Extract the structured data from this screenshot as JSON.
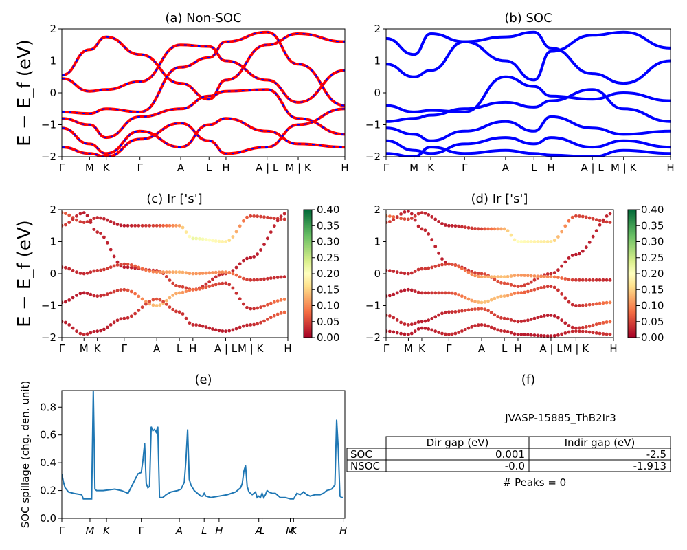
{
  "band_ylabel": "E − E_f (eV)",
  "kpath_labels": [
    "Γ",
    "M",
    "K",
    "Γ",
    "A",
    "L",
    "H",
    "A | L",
    "M | K",
    "H"
  ],
  "colors": {
    "nonsoc_line": "#ff0000",
    "nonsoc_dash": "#0000ff",
    "soc_line": "#0000ff",
    "spillage": "#1f77b4"
  },
  "chart_data": [
    {
      "panel": "a",
      "type": "line",
      "title": "(a) Non-SOC",
      "ylabel": "E − E_f (eV)",
      "ylim": [
        -2,
        2
      ],
      "yticks": [
        -2,
        -1,
        0,
        1,
        2
      ],
      "xticklabels": [
        "Γ",
        "M",
        "K",
        "Γ",
        "A",
        "L",
        "H",
        "A | L",
        "M | K",
        "H"
      ],
      "series": [
        {
          "values": [
            0.55,
            1.35,
            1.75,
            1.2,
            0.3,
            -0.2,
            0.4,
            1.5,
            1.85,
            1.6
          ]
        },
        {
          "values": [
            0.45,
            0.05,
            0.1,
            0.35,
            1.5,
            1.45,
            1.0,
            0.4,
            -0.3,
            0.7
          ]
        },
        {
          "values": [
            -0.6,
            -0.65,
            -0.5,
            -0.6,
            0.8,
            1.1,
            1.6,
            1.9,
            0.9,
            -0.4
          ]
        },
        {
          "values": [
            -0.8,
            -1.0,
            -1.4,
            -0.75,
            -0.5,
            -0.1,
            0.05,
            0.1,
            -0.8,
            -1.3
          ]
        },
        {
          "values": [
            -1.1,
            -1.6,
            -1.9,
            -1.2,
            -1.7,
            -1.0,
            -0.8,
            -1.2,
            -1.6,
            -1.7
          ]
        },
        {
          "values": [
            -1.7,
            -1.9,
            -2.0,
            -1.45,
            -0.95,
            -1.5,
            -1.9,
            -1.7,
            -1.0,
            -0.5
          ]
        }
      ]
    },
    {
      "panel": "b",
      "type": "line",
      "title": "(b) SOC",
      "ylim": [
        -2,
        2
      ],
      "yticks": [
        -2,
        -1,
        0,
        1,
        2
      ],
      "xticklabels": [
        "Γ",
        "M",
        "K",
        "Γ",
        "A",
        "L",
        "H",
        "A | L",
        "M | K",
        "H"
      ],
      "series": [
        {
          "values": [
            1.7,
            1.2,
            1.85,
            1.6,
            1.0,
            0.4,
            1.3,
            1.8,
            1.9,
            1.4
          ]
        },
        {
          "values": [
            0.9,
            0.5,
            0.7,
            1.6,
            1.75,
            1.9,
            1.4,
            0.6,
            0.3,
            1.0
          ]
        },
        {
          "values": [
            -0.4,
            -0.6,
            -0.55,
            -0.6,
            0.5,
            0.2,
            -0.1,
            -0.2,
            0.0,
            -0.25
          ]
        },
        {
          "values": [
            -0.9,
            -0.8,
            -0.7,
            -0.5,
            -0.3,
            -0.45,
            -0.25,
            0.1,
            -0.5,
            -0.9
          ]
        },
        {
          "values": [
            -1.1,
            -1.3,
            -1.5,
            -1.2,
            -0.9,
            -1.2,
            -0.75,
            -1.1,
            -1.3,
            -1.2
          ]
        },
        {
          "values": [
            -1.5,
            -1.8,
            -1.9,
            -1.6,
            -1.4,
            -1.6,
            -1.4,
            -1.7,
            -1.5,
            -1.7
          ]
        },
        {
          "values": [
            -1.9,
            -2.0,
            -1.7,
            -1.9,
            -1.8,
            -1.9,
            -1.95,
            -2.0,
            -1.8,
            -1.9
          ]
        }
      ]
    },
    {
      "panel": "c",
      "type": "scatter",
      "title": "(c)  Ir ['s']",
      "ylim": [
        -2,
        2
      ],
      "yticks": [
        -2,
        -1,
        0,
        1,
        2
      ],
      "xticklabels": [
        "Γ",
        "M",
        "K",
        "Γ",
        "A",
        "L",
        "H",
        "A | L",
        "M | K",
        "H"
      ],
      "colorbar": {
        "min": 0.0,
        "max": 0.4,
        "ticklabels": [
          "0.00",
          "0.05",
          "0.10",
          "0.15",
          "0.20",
          "0.25",
          "0.30",
          "0.35",
          "0.40"
        ],
        "colormap": "RdYlGn"
      },
      "series": [
        {
          "values": [
            1.9,
            1.6,
            1.75,
            1.5,
            1.5,
            1.5,
            1.1,
            1.0,
            1.8,
            1.7
          ],
          "weights": [
            0.07,
            0.04,
            0.03,
            0.02,
            0.05,
            0.12,
            0.22,
            0.18,
            0.05,
            0.04
          ]
        },
        {
          "values": [
            1.5,
            1.9,
            1.3,
            0.2,
            0.1,
            -0.4,
            -0.5,
            0.0,
            0.5,
            1.9
          ],
          "weights": [
            0.05,
            0.02,
            0.03,
            0.02,
            0.04,
            0.05,
            0.04,
            0.03,
            0.02,
            0.03
          ]
        },
        {
          "values": [
            0.2,
            0.0,
            0.1,
            0.3,
            0.05,
            0.05,
            0.0,
            0.05,
            -0.2,
            -0.1
          ],
          "weights": [
            0.03,
            0.03,
            0.04,
            0.05,
            0.1,
            0.13,
            0.11,
            0.1,
            0.04,
            0.03
          ]
        },
        {
          "values": [
            -0.9,
            -0.6,
            -0.7,
            -0.5,
            -1.0,
            -0.6,
            -0.5,
            -0.3,
            -1.1,
            -0.8
          ],
          "weights": [
            0.02,
            0.02,
            0.03,
            0.05,
            0.14,
            0.12,
            0.08,
            0.04,
            0.03,
            0.1
          ]
        },
        {
          "values": [
            -1.5,
            -1.9,
            -1.8,
            -1.4,
            -0.8,
            -1.2,
            -1.6,
            -1.8,
            -1.6,
            -1.2
          ],
          "weights": [
            0.02,
            0.03,
            0.02,
            0.03,
            0.06,
            0.04,
            0.03,
            0.02,
            0.03,
            0.08
          ]
        }
      ]
    },
    {
      "panel": "d",
      "type": "scatter",
      "title": "(d) Ir ['s']",
      "ylim": [
        -2,
        2
      ],
      "yticks": [
        -2,
        -1,
        0,
        1,
        2
      ],
      "xticklabels": [
        "Γ",
        "M",
        "K",
        "Γ",
        "A",
        "L",
        "H",
        "A | L",
        "M | K",
        "H"
      ],
      "colorbar": {
        "min": 0.0,
        "max": 0.4,
        "ticklabels": [
          "0.00",
          "0.05",
          "0.10",
          "0.15",
          "0.20",
          "0.25",
          "0.30",
          "0.35",
          "0.40"
        ],
        "colormap": "RdYlGn"
      },
      "series": [
        {
          "values": [
            1.8,
            1.7,
            1.9,
            1.5,
            1.4,
            1.4,
            1.0,
            1.0,
            1.8,
            1.6
          ],
          "weights": [
            0.09,
            0.05,
            0.03,
            0.02,
            0.05,
            0.13,
            0.2,
            0.17,
            0.05,
            0.04
          ]
        },
        {
          "values": [
            1.6,
            1.95,
            1.4,
            0.3,
            0.0,
            -0.3,
            -0.4,
            0.0,
            0.6,
            1.9
          ],
          "weights": [
            0.05,
            0.02,
            0.03,
            0.02,
            0.05,
            0.06,
            0.05,
            0.03,
            0.02,
            0.03
          ]
        },
        {
          "values": [
            0.1,
            0.0,
            0.15,
            0.3,
            -0.1,
            -0.1,
            -0.05,
            -0.1,
            -0.2,
            -0.2
          ],
          "weights": [
            0.03,
            0.03,
            0.04,
            0.05,
            0.12,
            0.14,
            0.11,
            0.1,
            0.04,
            0.03
          ]
        },
        {
          "values": [
            -0.7,
            -0.5,
            -0.6,
            -0.6,
            -0.9,
            -0.7,
            -0.6,
            -0.4,
            -1.0,
            -0.9
          ],
          "weights": [
            0.02,
            0.02,
            0.03,
            0.05,
            0.14,
            0.13,
            0.08,
            0.04,
            0.03,
            0.1
          ]
        },
        {
          "values": [
            -1.3,
            -1.6,
            -1.5,
            -1.2,
            -1.1,
            -1.4,
            -1.5,
            -1.3,
            -1.7,
            -1.5
          ],
          "weights": [
            0.03,
            0.03,
            0.02,
            0.03,
            0.06,
            0.04,
            0.03,
            0.02,
            0.03,
            0.08
          ]
        },
        {
          "values": [
            -1.8,
            -1.9,
            -1.7,
            -1.9,
            -1.6,
            -1.8,
            -1.9,
            -1.95,
            -1.8,
            -1.9
          ],
          "weights": [
            0.02,
            0.02,
            0.02,
            0.03,
            0.03,
            0.03,
            0.02,
            0.02,
            0.03,
            0.04
          ]
        }
      ]
    },
    {
      "panel": "e",
      "type": "line",
      "title": "(e)",
      "ylabel": "SOC spillage (chg. den. unit)",
      "ylim": [
        0.0,
        0.92
      ],
      "yticks": [
        0.0,
        0.2,
        0.4,
        0.6,
        0.8
      ],
      "yticklabels": [
        "0.0",
        "0.2",
        "0.4",
        "0.6",
        "0.8"
      ],
      "xticklabels": [
        "Γ",
        "M",
        "K",
        "Γ",
        "A",
        "L",
        "H",
        "A",
        "L",
        "M",
        "K",
        "H"
      ],
      "xtick_positions": [
        0.0,
        0.17,
        0.27,
        0.48,
        0.71,
        0.86,
        0.95,
        1.19,
        1.21,
        1.38,
        1.4,
        1.7
      ],
      "x": [
        0.0,
        0.01,
        0.02,
        0.04,
        0.07,
        0.12,
        0.13,
        0.17,
        0.18,
        0.19,
        0.2,
        0.21,
        0.25,
        0.32,
        0.36,
        0.4,
        0.46,
        0.48,
        0.49,
        0.5,
        0.51,
        0.52,
        0.53,
        0.54,
        0.55,
        0.56,
        0.57,
        0.58,
        0.59,
        0.6,
        0.61,
        0.62,
        0.63,
        0.66,
        0.7,
        0.72,
        0.74,
        0.75,
        0.76,
        0.77,
        0.78,
        0.8,
        0.84,
        0.85,
        0.86,
        0.87,
        0.9,
        0.95,
        1.0,
        1.05,
        1.08,
        1.09,
        1.1,
        1.11,
        1.12,
        1.13,
        1.15,
        1.17,
        1.18,
        1.19,
        1.2,
        1.21,
        1.22,
        1.23,
        1.24,
        1.25,
        1.27,
        1.29,
        1.3,
        1.32,
        1.35,
        1.38,
        1.4,
        1.42,
        1.44,
        1.46,
        1.48,
        1.5,
        1.53,
        1.56,
        1.58,
        1.6,
        1.63,
        1.65,
        1.66,
        1.67,
        1.68,
        1.69,
        1.7
      ],
      "values": [
        0.32,
        0.26,
        0.22,
        0.19,
        0.18,
        0.17,
        0.14,
        0.14,
        0.14,
        0.92,
        0.21,
        0.2,
        0.2,
        0.21,
        0.2,
        0.18,
        0.32,
        0.33,
        0.42,
        0.54,
        0.25,
        0.22,
        0.23,
        0.66,
        0.63,
        0.64,
        0.62,
        0.66,
        0.15,
        0.15,
        0.15,
        0.16,
        0.17,
        0.19,
        0.2,
        0.21,
        0.26,
        0.42,
        0.64,
        0.28,
        0.24,
        0.2,
        0.16,
        0.16,
        0.18,
        0.16,
        0.15,
        0.16,
        0.17,
        0.19,
        0.22,
        0.25,
        0.34,
        0.38,
        0.23,
        0.19,
        0.17,
        0.19,
        0.15,
        0.16,
        0.15,
        0.18,
        0.15,
        0.17,
        0.2,
        0.19,
        0.18,
        0.18,
        0.17,
        0.15,
        0.15,
        0.14,
        0.14,
        0.18,
        0.17,
        0.19,
        0.17,
        0.16,
        0.17,
        0.17,
        0.18,
        0.2,
        0.21,
        0.24,
        0.71,
        0.5,
        0.16,
        0.15,
        0.15
      ]
    },
    {
      "panel": "f",
      "type": "table",
      "title": "(f)",
      "material": "JVASP-15885_ThB2Ir3",
      "columns": [
        "Dir gap (eV)",
        "Indir gap (eV)"
      ],
      "rows": [
        {
          "label": "SOC",
          "cells": [
            "0.001",
            "-2.5"
          ]
        },
        {
          "label": "NSOC",
          "cells": [
            "-0.0",
            "-1.913"
          ]
        }
      ],
      "footer": "# Peaks = 0"
    }
  ]
}
